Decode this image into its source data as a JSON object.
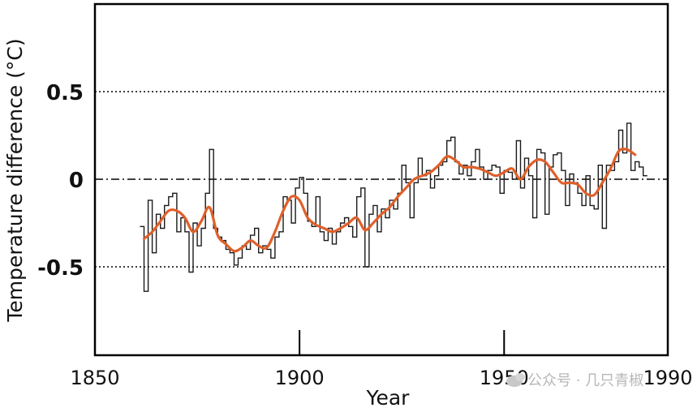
{
  "chart_data": {
    "type": "line",
    "xlabel": "Year",
    "ylabel": "Temperature difference (°C)",
    "xlim": [
      1850,
      1990
    ],
    "ylim": [
      -1.0,
      1.0
    ],
    "x_ticks": [
      1850,
      1900,
      1950,
      1990
    ],
    "y_ticks": [
      0.5,
      0,
      -0.5
    ],
    "y_tick_labels": [
      "0.5",
      "0",
      "-0.5"
    ],
    "reference_lines": [
      {
        "y": 0.5,
        "style": "dotted"
      },
      {
        "y": 0,
        "style": "dash-dot"
      },
      {
        "y": -0.5,
        "style": "dotted"
      }
    ],
    "series": [
      {
        "style": "step",
        "color": "#000000",
        "x": [
          1861,
          1862,
          1863,
          1864,
          1865,
          1866,
          1867,
          1868,
          1869,
          1870,
          1871,
          1872,
          1873,
          1874,
          1875,
          1876,
          1877,
          1878,
          1879,
          1880,
          1881,
          1882,
          1883,
          1884,
          1885,
          1886,
          1887,
          1888,
          1889,
          1890,
          1891,
          1892,
          1893,
          1894,
          1895,
          1896,
          1897,
          1898,
          1899,
          1900,
          1901,
          1902,
          1903,
          1904,
          1905,
          1906,
          1907,
          1908,
          1909,
          1910,
          1911,
          1912,
          1913,
          1914,
          1915,
          1916,
          1917,
          1918,
          1919,
          1920,
          1921,
          1922,
          1923,
          1924,
          1925,
          1926,
          1927,
          1928,
          1929,
          1930,
          1931,
          1932,
          1933,
          1934,
          1935,
          1936,
          1937,
          1938,
          1939,
          1940,
          1941,
          1942,
          1943,
          1944,
          1945,
          1946,
          1947,
          1948,
          1949,
          1950,
          1951,
          1952,
          1953,
          1954,
          1955,
          1956,
          1957,
          1958,
          1959,
          1960,
          1961,
          1962,
          1963,
          1964,
          1965,
          1966,
          1967,
          1968,
          1969,
          1970,
          1971,
          1972,
          1973,
          1974,
          1975,
          1976,
          1977,
          1978,
          1979,
          1980,
          1981,
          1982,
          1983,
          1984
        ],
        "values": [
          -0.27,
          -0.64,
          -0.12,
          -0.42,
          -0.2,
          -0.28,
          -0.15,
          -0.1,
          -0.08,
          -0.3,
          -0.22,
          -0.3,
          -0.53,
          -0.25,
          -0.38,
          -0.28,
          -0.08,
          0.17,
          -0.28,
          -0.33,
          -0.35,
          -0.4,
          -0.42,
          -0.49,
          -0.45,
          -0.38,
          -0.4,
          -0.32,
          -0.28,
          -0.42,
          -0.38,
          -0.4,
          -0.45,
          -0.33,
          -0.3,
          -0.1,
          -0.12,
          -0.25,
          -0.05,
          0.01,
          -0.08,
          -0.24,
          -0.27,
          -0.1,
          -0.3,
          -0.35,
          -0.28,
          -0.37,
          -0.3,
          -0.25,
          -0.22,
          -0.27,
          -0.33,
          -0.1,
          -0.05,
          -0.5,
          -0.2,
          -0.15,
          -0.3,
          -0.17,
          -0.22,
          -0.12,
          -0.17,
          -0.08,
          0.08,
          -0.02,
          -0.22,
          -0.02,
          0.12,
          0.02,
          0.05,
          -0.05,
          0.02,
          0.08,
          0.1,
          0.22,
          0.24,
          0.1,
          0.03,
          0.08,
          0.02,
          0.1,
          0.17,
          0.07,
          0.0,
          0.05,
          0.08,
          0.07,
          -0.08,
          0.05,
          0.04,
          0.0,
          0.22,
          -0.05,
          0.12,
          0.02,
          -0.22,
          0.17,
          0.15,
          -0.2,
          0.07,
          0.14,
          0.15,
          0.05,
          -0.15,
          0.03,
          -0.02,
          -0.08,
          -0.15,
          0.02,
          -0.15,
          -0.17,
          0.08,
          -0.28,
          0.08,
          0.05,
          0.1,
          0.28,
          0.15,
          0.32,
          0.05,
          0.1,
          0.07,
          0.02
        ]
      },
      {
        "style": "smooth",
        "color": "#e0602a",
        "x": [
          1862,
          1864,
          1866,
          1868,
          1870,
          1872,
          1874,
          1876,
          1878,
          1880,
          1882,
          1884,
          1886,
          1888,
          1890,
          1892,
          1894,
          1896,
          1898,
          1900,
          1902,
          1904,
          1906,
          1908,
          1910,
          1912,
          1914,
          1916,
          1918,
          1920,
          1922,
          1924,
          1926,
          1928,
          1930,
          1932,
          1934,
          1936,
          1938,
          1940,
          1942,
          1944,
          1946,
          1948,
          1950,
          1952,
          1954,
          1956,
          1958,
          1960,
          1962,
          1964,
          1966,
          1968,
          1970,
          1972,
          1974,
          1976,
          1978,
          1980,
          1982
        ],
        "values": [
          -0.34,
          -0.3,
          -0.24,
          -0.18,
          -0.18,
          -0.22,
          -0.3,
          -0.24,
          -0.16,
          -0.32,
          -0.37,
          -0.41,
          -0.39,
          -0.35,
          -0.38,
          -0.39,
          -0.3,
          -0.18,
          -0.1,
          -0.12,
          -0.22,
          -0.26,
          -0.28,
          -0.3,
          -0.28,
          -0.25,
          -0.22,
          -0.29,
          -0.25,
          -0.2,
          -0.16,
          -0.1,
          -0.05,
          0.0,
          0.02,
          0.04,
          0.08,
          0.13,
          0.11,
          0.07,
          0.07,
          0.06,
          0.04,
          0.02,
          0.04,
          0.06,
          0.0,
          0.07,
          0.11,
          0.1,
          0.04,
          -0.02,
          -0.02,
          -0.03,
          -0.08,
          -0.09,
          -0.02,
          0.06,
          0.16,
          0.17,
          0.14
        ]
      }
    ]
  },
  "watermark": {
    "text": "公众号 · 几只青椒"
  }
}
